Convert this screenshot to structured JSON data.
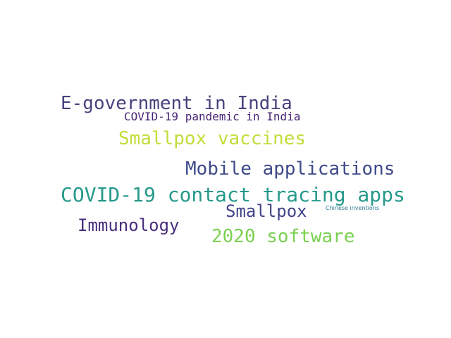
{
  "words": [
    {
      "text": "E-government in India",
      "color": "#46437d"
    },
    {
      "text": "COVID-19 pandemic in India",
      "color": "#482474"
    },
    {
      "text": "Smallpox vaccines",
      "color": "#c3dd3a"
    },
    {
      "text": "Mobile applications",
      "color": "#3e4a89"
    },
    {
      "text": "COVID-19 contact tracing apps",
      "color": "#26998a"
    },
    {
      "text": "Smallpox",
      "color": "#414487"
    },
    {
      "text": "Chinese inventions",
      "color": "#2a788e"
    },
    {
      "text": "Immunology",
      "color": "#472d7b"
    },
    {
      "text": "2020 software",
      "color": "#7ad151"
    }
  ]
}
